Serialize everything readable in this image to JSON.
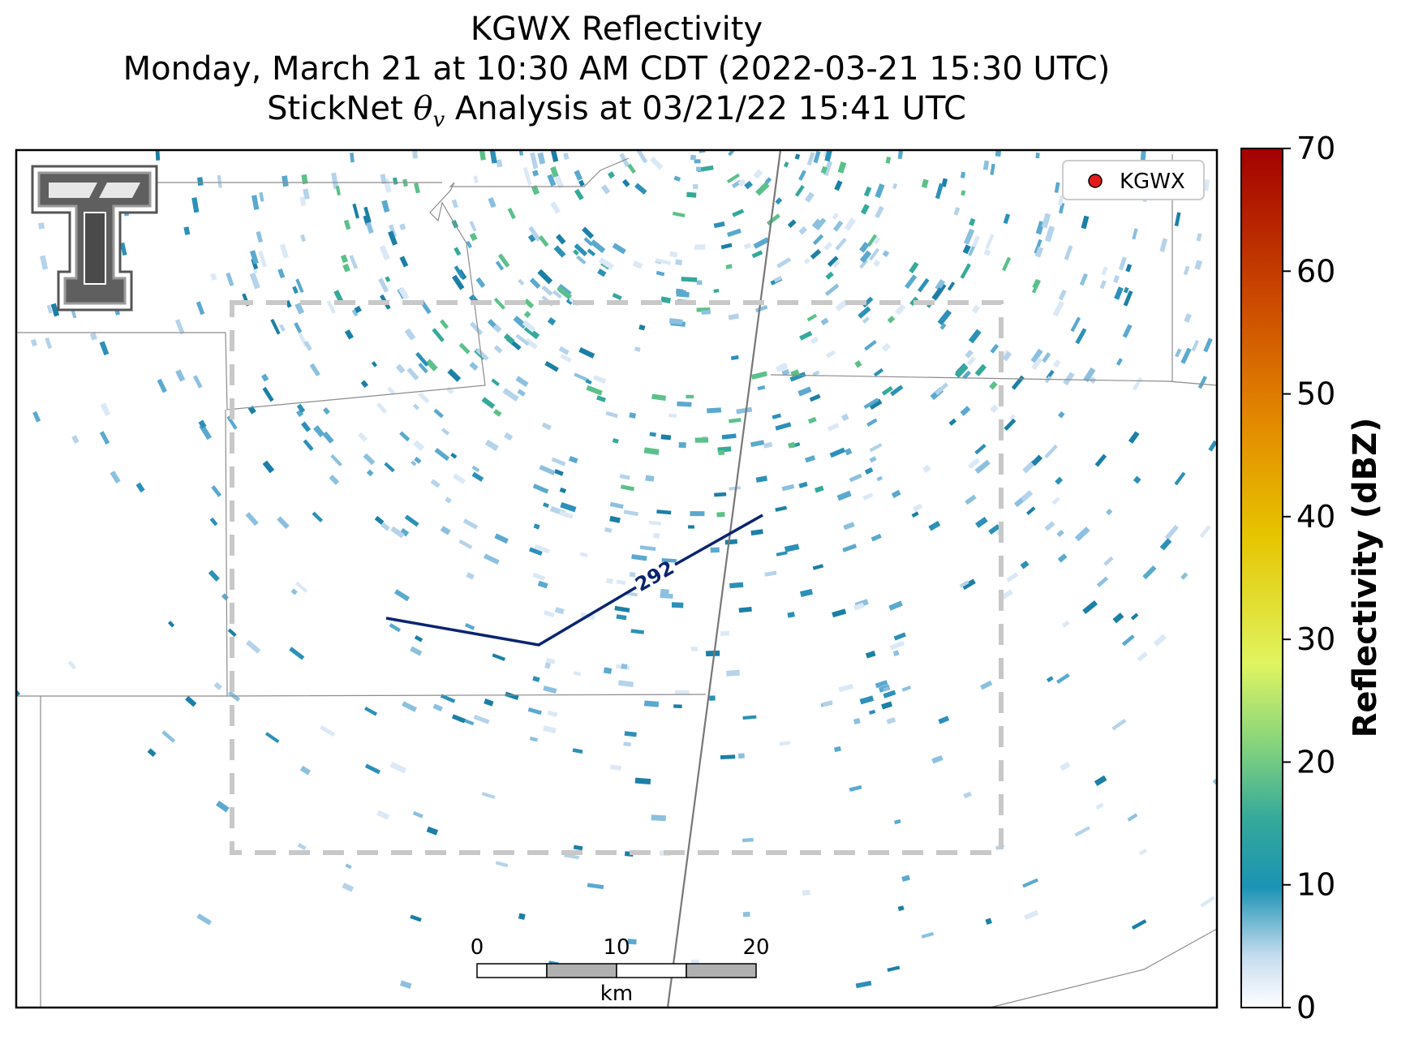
{
  "title": {
    "line1": "KGWX Reflectivity",
    "line2": "Monday, March 21 at 10:30 AM CDT (2022-03-21 15:30 UTC)",
    "line3_prefix": "StickNet ",
    "line3_theta": "θ",
    "line3_sub": "v",
    "line3_suffix": " Analysis at 03/21/22 15:41 UTC"
  },
  "legend": {
    "marker_label": "KGWX",
    "marker_color": "#e31a1c"
  },
  "contour": {
    "label": "292",
    "color": "#0b2470"
  },
  "colorbar": {
    "label": "Reflectivity (dBZ)",
    "ticks": [
      "0",
      "10",
      "20",
      "30",
      "40",
      "50",
      "60",
      "70"
    ],
    "range": [
      0,
      70
    ],
    "colors": [
      "#ffffff",
      "#c6dcef",
      "#1b93b4",
      "#35a99a",
      "#7fd17f",
      "#dff560",
      "#e6c400",
      "#e38a00",
      "#cc4b00",
      "#a30000"
    ]
  },
  "scale_bar": {
    "ticks": [
      "0",
      "10",
      "20"
    ],
    "unit": "km"
  },
  "logo": {
    "text": "TT"
  },
  "colors": {
    "analysis_box": "#c8c8c8",
    "borders": "#8c8c8c",
    "road": "#777777"
  }
}
